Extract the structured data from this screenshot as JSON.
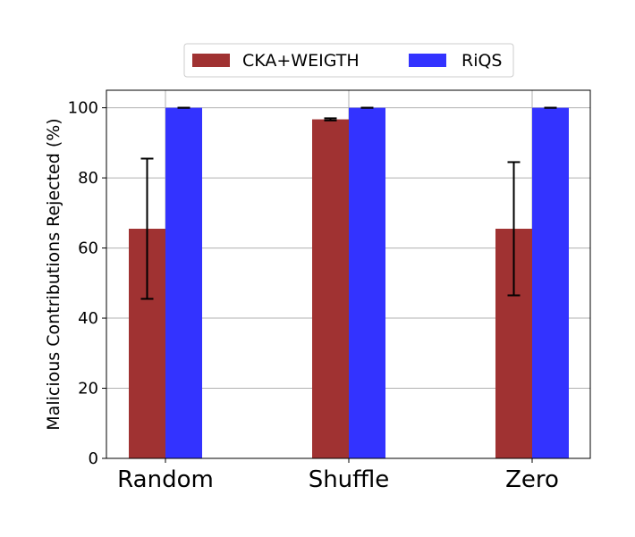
{
  "chart_data": {
    "type": "bar",
    "title": "",
    "xlabel": "",
    "ylabel": "Malicious Contributions Rejected (%)",
    "categories": [
      "Random",
      "Shuffle",
      "Zero"
    ],
    "ylim": [
      0,
      105
    ],
    "yticks": [
      0,
      20,
      40,
      60,
      80,
      100
    ],
    "grid": true,
    "legend_position": "top-center",
    "series": [
      {
        "name": "CKA+WEIGTH",
        "color": "#a03232",
        "values": [
          65.5,
          96.7,
          65.5
        ],
        "error": [
          20.0,
          0.3,
          19.0
        ]
      },
      {
        "name": "RiQS",
        "color": "#3333ff",
        "values": [
          100,
          100,
          100
        ],
        "error": [
          0,
          0,
          0
        ]
      }
    ]
  }
}
